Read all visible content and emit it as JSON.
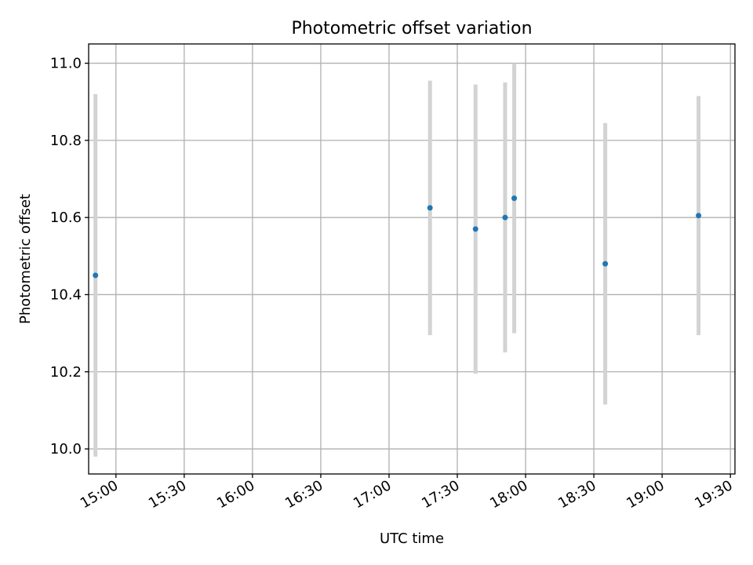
{
  "chart_data": {
    "type": "scatter",
    "title": "Photometric offset variation",
    "xlabel": "UTC time",
    "ylabel": "Photometric offset",
    "xlim": [
      "14:48",
      "19:32"
    ],
    "ylim": [
      9.935,
      11.05
    ],
    "grid": true,
    "x_ticks": [
      "15:00",
      "15:30",
      "16:00",
      "16:30",
      "17:00",
      "17:30",
      "18:00",
      "18:30",
      "19:00",
      "19:30"
    ],
    "y_ticks": [
      "10.0",
      "10.2",
      "10.4",
      "10.6",
      "10.8",
      "11.0"
    ],
    "colors": {
      "marker": "#1f77b4",
      "errorbar": "#d3d3d3",
      "grid": "#b0b0b0",
      "axes": "#000000"
    },
    "points": [
      {
        "x": "14:51",
        "y": 10.45,
        "yerr": 0.47
      },
      {
        "x": "17:18",
        "y": 10.625,
        "yerr": 0.33
      },
      {
        "x": "17:38",
        "y": 10.57,
        "yerr": 0.375
      },
      {
        "x": "17:51",
        "y": 10.6,
        "yerr": 0.35
      },
      {
        "x": "17:55",
        "y": 10.65,
        "yerr": 0.35
      },
      {
        "x": "18:35",
        "y": 10.48,
        "yerr": 0.365
      },
      {
        "x": "19:16",
        "y": 10.605,
        "yerr": 0.31
      }
    ]
  }
}
